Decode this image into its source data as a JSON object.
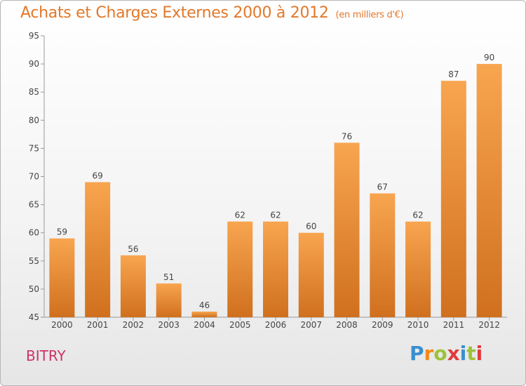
{
  "header": {
    "title": "Achats et Charges Externes 2000 à 2012",
    "subtitle": "(en milliers d'€)"
  },
  "footer": {
    "commune": "BITRY",
    "logo_letters": [
      "P",
      "r",
      "o",
      "x",
      "i",
      "t",
      "i"
    ],
    "logo_colors": [
      "#3a8fd0",
      "#f08a1c",
      "#9dc23b",
      "#e23b3b",
      "#3a8fd0",
      "#9dc23b",
      "#e23b3b"
    ]
  },
  "colors": {
    "bar_top": "#f8a550",
    "bar_bottom": "#d0701e",
    "axis": "#999999",
    "grid": "#dddddd"
  },
  "chart_data": {
    "type": "bar",
    "title": "Achats et Charges Externes 2000 à 2012",
    "subtitle": "(en milliers d'€)",
    "categories": [
      "2000",
      "2001",
      "2002",
      "2003",
      "2004",
      "2005",
      "2006",
      "2007",
      "2008",
      "2009",
      "2010",
      "2011",
      "2012"
    ],
    "values": [
      59,
      69,
      56,
      51,
      46,
      62,
      62,
      60,
      76,
      67,
      62,
      87,
      90
    ],
    "ylim": [
      45,
      95
    ],
    "yticks": [
      45,
      50,
      55,
      60,
      65,
      70,
      75,
      80,
      85,
      90,
      95
    ],
    "xlabel": "",
    "ylabel": "",
    "grid": false,
    "data_labels": true
  }
}
